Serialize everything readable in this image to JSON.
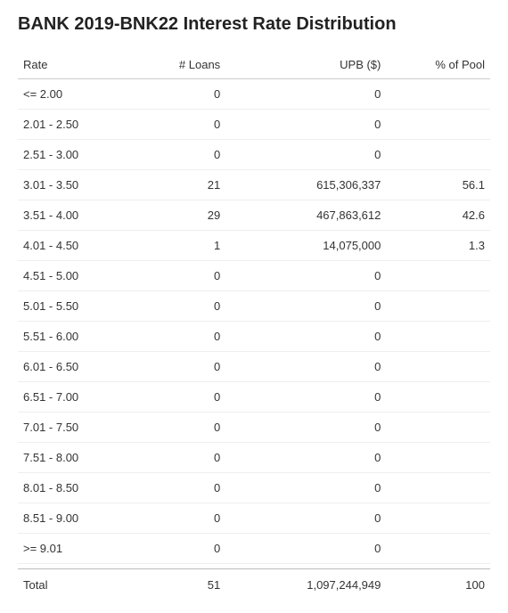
{
  "title": "BANK 2019-BNK22 Interest Rate Distribution",
  "table": {
    "columns": [
      "Rate",
      "# Loans",
      "UPB ($)",
      "% of Pool"
    ],
    "rows": [
      {
        "rate": "<= 2.00",
        "loans": "0",
        "upb": "0",
        "pct": ""
      },
      {
        "rate": "2.01 - 2.50",
        "loans": "0",
        "upb": "0",
        "pct": ""
      },
      {
        "rate": "2.51 - 3.00",
        "loans": "0",
        "upb": "0",
        "pct": ""
      },
      {
        "rate": "3.01 - 3.50",
        "loans": "21",
        "upb": "615,306,337",
        "pct": "56.1"
      },
      {
        "rate": "3.51 - 4.00",
        "loans": "29",
        "upb": "467,863,612",
        "pct": "42.6"
      },
      {
        "rate": "4.01 - 4.50",
        "loans": "1",
        "upb": "14,075,000",
        "pct": "1.3"
      },
      {
        "rate": "4.51 - 5.00",
        "loans": "0",
        "upb": "0",
        "pct": ""
      },
      {
        "rate": "5.01 - 5.50",
        "loans": "0",
        "upb": "0",
        "pct": ""
      },
      {
        "rate": "5.51 - 6.00",
        "loans": "0",
        "upb": "0",
        "pct": ""
      },
      {
        "rate": "6.01 - 6.50",
        "loans": "0",
        "upb": "0",
        "pct": ""
      },
      {
        "rate": "6.51 - 7.00",
        "loans": "0",
        "upb": "0",
        "pct": ""
      },
      {
        "rate": "7.01 - 7.50",
        "loans": "0",
        "upb": "0",
        "pct": ""
      },
      {
        "rate": "7.51 - 8.00",
        "loans": "0",
        "upb": "0",
        "pct": ""
      },
      {
        "rate": "8.01 - 8.50",
        "loans": "0",
        "upb": "0",
        "pct": ""
      },
      {
        "rate": "8.51 - 9.00",
        "loans": "0",
        "upb": "0",
        "pct": ""
      },
      {
        "rate": ">= 9.01",
        "loans": "0",
        "upb": "0",
        "pct": ""
      }
    ],
    "total": {
      "label": "Total",
      "loans": "51",
      "upb": "1,097,244,949",
      "pct": "100"
    }
  },
  "style": {
    "title_fontsize": 20,
    "body_fontsize": 13,
    "header_border_color": "#cccccc",
    "row_border_color": "#eeeeee",
    "total_border_color": "#bbbbbb",
    "text_color": "#333333",
    "background_color": "#ffffff"
  }
}
